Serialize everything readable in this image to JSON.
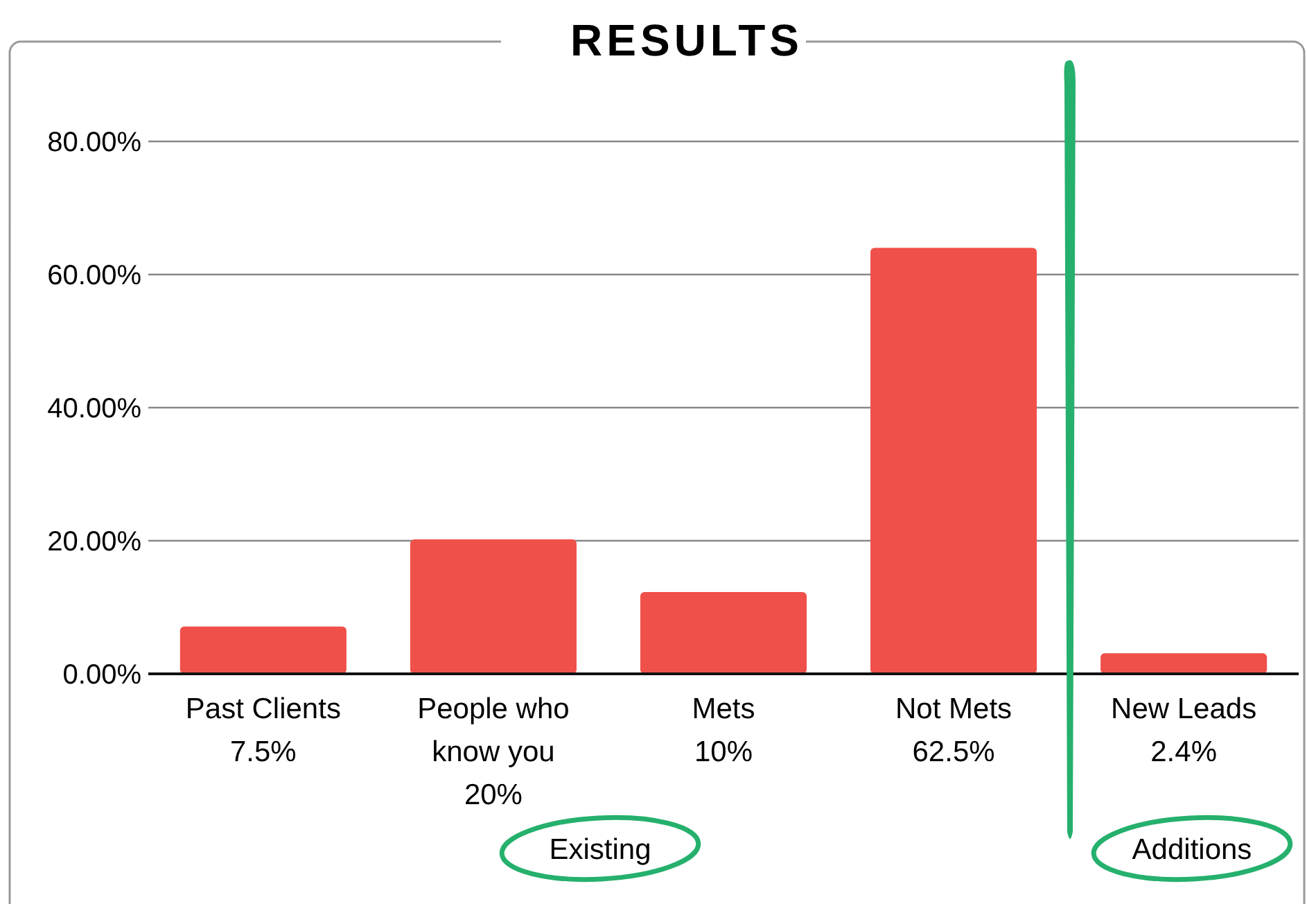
{
  "chart_data": {
    "type": "bar",
    "title": "RESULTS",
    "categories": [
      "Past Clients\n7.5%",
      "People who\nknow you\n20%",
      "Mets\n10%",
      "Not Mets\n62.5%",
      "New Leads\n2.4%"
    ],
    "values": [
      7.1,
      20.2,
      12.3,
      64,
      3.1
    ],
    "color": "#f0504a",
    "ylim": [
      0,
      95
    ],
    "yticks": [
      {
        "value": 0,
        "label": "0.00%"
      },
      {
        "value": 20,
        "label": "20.00%"
      },
      {
        "value": 40,
        "label": "40.00%"
      },
      {
        "value": 60,
        "label": "60.00%"
      },
      {
        "value": 80,
        "label": "80.00%"
      }
    ],
    "grid": "y",
    "annotations": [
      "Existing",
      "Additions"
    ]
  }
}
